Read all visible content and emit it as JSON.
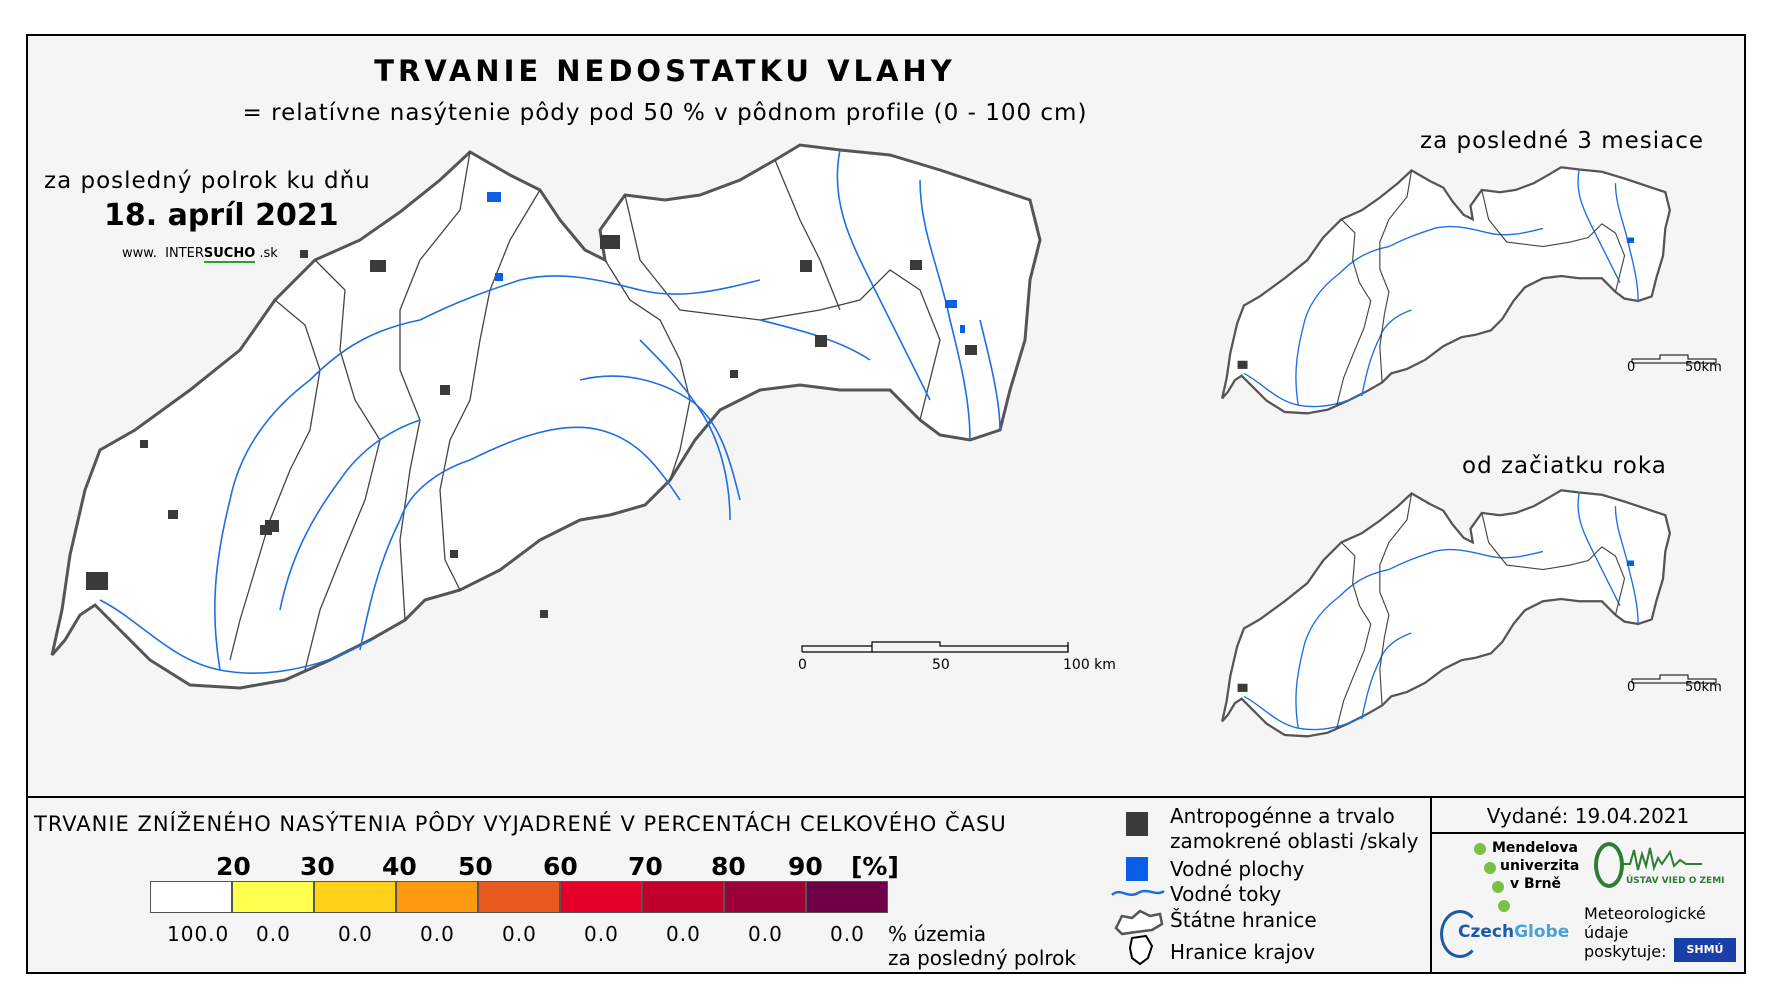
{
  "header": {
    "title": "TRVANIE NEDOSTATKU VLAHY",
    "subtitle": "= relatívne nasýtenie pôdy pod 50 % v pôdnom profile (0 - 100 cm)"
  },
  "main_map": {
    "period_label": "za posledný polrok ku dňu",
    "date": "18. apríl 2021",
    "website_prefix": "www.",
    "website_name_a": "INTER",
    "website_name_b": "SUCHO",
    "website_suffix": ".sk",
    "scale_labels": [
      "0",
      "50",
      "100 km"
    ]
  },
  "inset_3m": {
    "label": "za posledné 3 mesiace",
    "scale_labels": [
      "0",
      "50km"
    ]
  },
  "inset_ytd": {
    "label": "od začiatku roka",
    "scale_labels": [
      "0",
      "50km"
    ]
  },
  "legend": {
    "title": "TRVANIE ZNÍŽENÉHO NASÝTENIA PÔDY VYJADRENÉ V PERCENTÁCH CELKOVÉHO ČASU",
    "class_labels": [
      "20",
      "30",
      "40",
      "50",
      "60",
      "70",
      "80",
      "90",
      "[%]"
    ],
    "colors": [
      "#ffffff",
      "#ffff4d",
      "#ffd21a",
      "#ff9a10",
      "#e95a1e",
      "#e3002a",
      "#c0002a",
      "#9b0038",
      "#6d0046"
    ],
    "percentages": [
      "100.0",
      "0.0",
      "0.0",
      "0.0",
      "0.0",
      "0.0",
      "0.0",
      "0.0",
      "0.0"
    ],
    "percent_note_line1": "% územia",
    "percent_note_line2": "za posledný polrok",
    "items": {
      "anthropogenic_line1": "Antropogénne a trvalo",
      "anthropogenic_line2": "zamokrené oblasti /skaly",
      "water_bodies": "Vodné plochy",
      "rivers": "Vodné toky",
      "state_border": "Štátne hranice",
      "region_border": "Hranice krajov"
    },
    "item_colors": {
      "anthropogenic": "#3a3a3a",
      "water": "#0a5fe8",
      "river": "#1f6fe0"
    }
  },
  "footer": {
    "issued": "Vydané: 19.04.2021",
    "mendel_line1": "Mendelova",
    "mendel_line2": "univerzita",
    "mendel_line3": "v Brně",
    "czechglobe_a": "Czech",
    "czechglobe_b": "Globe",
    "uvz": "ÚSTAV VIED O ZEMI",
    "meteo_line1": "Meteorologické",
    "meteo_line2": "údaje",
    "meteo_line3": "poskytuje:",
    "shmu": "SHMÚ"
  }
}
